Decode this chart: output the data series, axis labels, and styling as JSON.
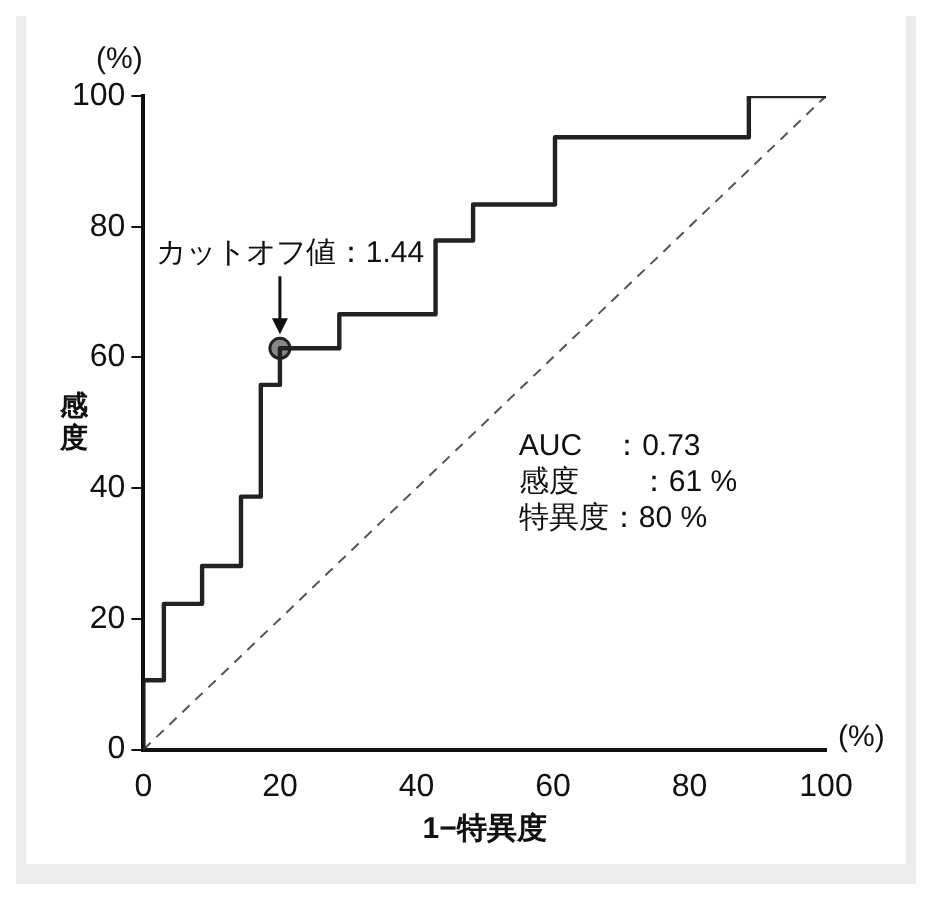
{
  "chart_data": {
    "type": "step",
    "xlabel": "1−特異度",
    "ylabel": "感度",
    "series": [
      {
        "color": "#222222",
        "x": [
          0,
          3,
          8.6,
          14.3,
          17.2,
          20,
          28.7,
          42.8,
          48.3,
          60.3,
          88.7,
          100
        ],
        "values": [
          0,
          10.6,
          22.3,
          28.1,
          38.7,
          55.8,
          61.4,
          66.6,
          77.9,
          83.4,
          93.7,
          100
        ]
      },
      {
        "type": "line",
        "color": "#555555",
        "line_style": "dashed",
        "marker": "none",
        "x": [
          0,
          100
        ],
        "values": [
          0,
          100
        ]
      },
      {
        "type": "scatter",
        "color": "#888888",
        "marker": "circle",
        "x": [
          20
        ],
        "values": [
          61.4
        ]
      }
    ],
    "xlim": [
      0,
      100
    ],
    "ylim": [
      0,
      100
    ],
    "xticks": [
      0,
      20,
      40,
      60,
      80,
      100
    ],
    "yticks": [
      0,
      20,
      40,
      60,
      80,
      100
    ],
    "grid": false,
    "legend": false,
    "annotations": [
      {
        "text": "カットオフ値：1.44",
        "x": 20,
        "y": 61.4
      },
      "AUC　：0.73",
      "感度　　：61 %",
      "特異度：80 %",
      "(%)",
      "(%)"
    ]
  }
}
